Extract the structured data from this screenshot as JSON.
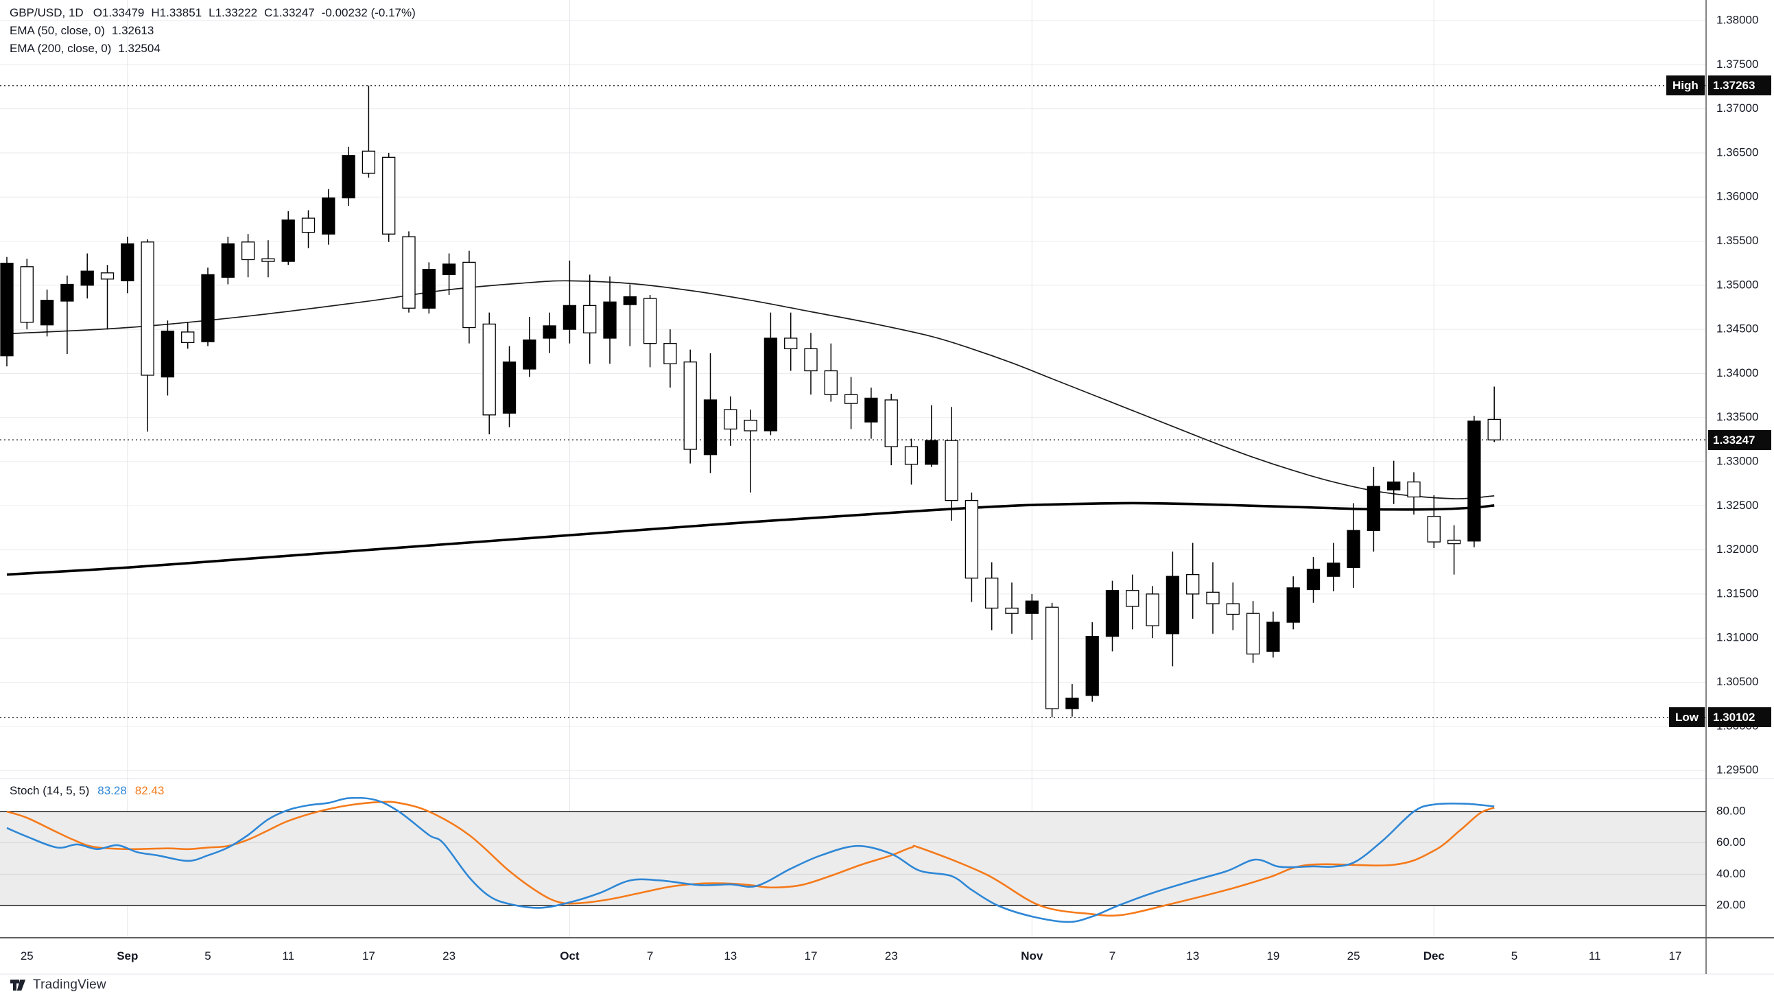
{
  "legend": {
    "symbol_interval": "GBP/USD, 1D",
    "open": "O1.33479",
    "high": "H1.33851",
    "low": "L1.33222",
    "close": "C1.33247",
    "change": "-0.00232 (-0.17%)",
    "ema50_title": "EMA (50, close, 0)",
    "ema50_value": "1.32613",
    "ema200_title": "EMA (200, close, 0)",
    "ema200_value": "1.32504"
  },
  "stoch_legend": {
    "title": "Stoch (14, 5, 5)",
    "k_value": "83.28",
    "d_value": "82.43"
  },
  "badges": {
    "high_label": "High",
    "high_value": "1.37263",
    "low_label": "Low",
    "low_value": "1.30102",
    "close_value": "1.33247"
  },
  "price_axis": {
    "labels": [
      "1.38000",
      "1.37500",
      "1.37000",
      "1.36500",
      "1.36000",
      "1.35500",
      "1.35000",
      "1.34500",
      "1.34000",
      "1.33500",
      "1.33000",
      "1.32500",
      "1.32000",
      "1.31500",
      "1.31000",
      "1.30500",
      "1.30000",
      "1.29500"
    ]
  },
  "stoch_axis": {
    "labels": [
      "80.00",
      "60.00",
      "40.00",
      "20.00"
    ],
    "values": [
      80,
      60,
      40,
      20
    ]
  },
  "time_axis": {
    "ticks": [
      {
        "label": "25",
        "idx": 1,
        "bold": false
      },
      {
        "label": "Sep",
        "idx": 6,
        "bold": true
      },
      {
        "label": "5",
        "idx": 10,
        "bold": false
      },
      {
        "label": "11",
        "idx": 14,
        "bold": false
      },
      {
        "label": "17",
        "idx": 18,
        "bold": false
      },
      {
        "label": "23",
        "idx": 22,
        "bold": false
      },
      {
        "label": "Oct",
        "idx": 28,
        "bold": true
      },
      {
        "label": "7",
        "idx": 32,
        "bold": false
      },
      {
        "label": "13",
        "idx": 36,
        "bold": false
      },
      {
        "label": "17",
        "idx": 40,
        "bold": false
      },
      {
        "label": "23",
        "idx": 44,
        "bold": false
      },
      {
        "label": "Nov",
        "idx": 51,
        "bold": true
      },
      {
        "label": "7",
        "idx": 55,
        "bold": false
      },
      {
        "label": "13",
        "idx": 59,
        "bold": false
      },
      {
        "label": "19",
        "idx": 63,
        "bold": false
      },
      {
        "label": "25",
        "idx": 67,
        "bold": false
      },
      {
        "label": "Dec",
        "idx": 71,
        "bold": true
      },
      {
        "label": "5",
        "idx": 75,
        "bold": false
      },
      {
        "label": "11",
        "idx": 79,
        "bold": false
      },
      {
        "label": "17",
        "idx": 83,
        "bold": false
      }
    ]
  },
  "footer": {
    "brand": "TradingView"
  },
  "colors": {
    "up_candle": "#000000",
    "down_candle_fill": "#ffffff",
    "candle_stroke": "#000000",
    "grid": "#e9eaec",
    "month_grid": "#e4e6ea",
    "axis_text": "#131722",
    "axis_border": "#4f4f4f",
    "badge_bg": "#0b0b0b",
    "ema50": "#1c1c1c",
    "ema200": "#000000",
    "stoch_k": "#2e87d6",
    "stoch_d": "#f57a1a",
    "stoch_band": "#ececec",
    "stoch_inner_grid": "#d6d6d6",
    "stoch_band_edge": "#1f1f1f",
    "divider_light": "#e0e3eb",
    "divider_dark": "#2a2a2a",
    "dotted_level": "#1f1f1f"
  },
  "chart_data": {
    "type": "candlestick",
    "title": "GBP/USD, 1D with EMA(50), EMA(200) and Stochastic (14,5,5)",
    "symbol": "GBP/USD",
    "interval": "1D",
    "last_bar": {
      "open": 1.33479,
      "high": 1.33851,
      "low": 1.33222,
      "close": 1.33247,
      "change": -0.00232,
      "change_pct": -0.17
    },
    "key_levels": {
      "high": 1.37263,
      "low": 1.30102,
      "close": 1.33247
    },
    "price_axis": {
      "grid_min": 1.295,
      "grid_max": 1.38,
      "grid_step": 0.005
    },
    "legend_position": "top-left",
    "grid": true,
    "up_style": "filled-black",
    "down_style": "hollow-white",
    "month_grid_indices": [
      6,
      28,
      51,
      71
    ],
    "candles": [
      [
        "Aug 22",
        1.342,
        1.3532,
        1.3408,
        1.3525
      ],
      [
        "Aug 25",
        1.3521,
        1.353,
        1.345,
        1.3458
      ],
      [
        "Aug 26",
        1.3455,
        1.3495,
        1.3442,
        1.3483
      ],
      [
        "Aug 27",
        1.3482,
        1.3511,
        1.3422,
        1.3501
      ],
      [
        "Aug 28",
        1.35,
        1.3536,
        1.3485,
        1.3516
      ],
      [
        "Aug 29",
        1.3514,
        1.3523,
        1.345,
        1.3507
      ],
      [
        "Sep 1",
        1.3505,
        1.3555,
        1.3491,
        1.3547
      ],
      [
        "Sep 2",
        1.3549,
        1.3552,
        1.3334,
        1.3398
      ],
      [
        "Sep 3",
        1.3396,
        1.346,
        1.3375,
        1.3448
      ],
      [
        "Sep 4",
        1.3447,
        1.3458,
        1.3428,
        1.3435
      ],
      [
        "Sep 5",
        1.3436,
        1.352,
        1.3431,
        1.3512
      ],
      [
        "Sep 8",
        1.3509,
        1.3555,
        1.3501,
        1.3547
      ],
      [
        "Sep 9",
        1.3549,
        1.3558,
        1.3509,
        1.3529
      ],
      [
        "Sep 10",
        1.353,
        1.3551,
        1.3509,
        1.3527
      ],
      [
        "Sep 11",
        1.3527,
        1.3584,
        1.3523,
        1.3574
      ],
      [
        "Sep 12",
        1.3576,
        1.3585,
        1.3542,
        1.356
      ],
      [
        "Sep 15",
        1.3558,
        1.3609,
        1.3546,
        1.3599
      ],
      [
        "Sep 16",
        1.3599,
        1.3657,
        1.359,
        1.3647
      ],
      [
        "Sep 17",
        1.3652,
        1.37263,
        1.3622,
        1.3627
      ],
      [
        "Sep 18",
        1.3645,
        1.365,
        1.3549,
        1.3558
      ],
      [
        "Sep 19",
        1.3555,
        1.3561,
        1.3469,
        1.3474
      ],
      [
        "Sep 22",
        1.3474,
        1.3526,
        1.3468,
        1.3518
      ],
      [
        "Sep 23",
        1.3512,
        1.3536,
        1.3489,
        1.3524
      ],
      [
        "Sep 24",
        1.3526,
        1.3539,
        1.3434,
        1.3452
      ],
      [
        "Sep 25",
        1.3456,
        1.3469,
        1.3331,
        1.3353
      ],
      [
        "Sep 26",
        1.3355,
        1.3431,
        1.3339,
        1.3413
      ],
      [
        "Sep 29",
        1.3405,
        1.3464,
        1.3396,
        1.3438
      ],
      [
        "Sep 30",
        1.344,
        1.3469,
        1.3423,
        1.3454
      ],
      [
        "Oct 1",
        1.345,
        1.3528,
        1.3434,
        1.3477
      ],
      [
        "Oct 2",
        1.3477,
        1.3512,
        1.3411,
        1.3446
      ],
      [
        "Oct 3",
        1.344,
        1.351,
        1.3411,
        1.3481
      ],
      [
        "Oct 6",
        1.3478,
        1.3501,
        1.3431,
        1.3487
      ],
      [
        "Oct 7",
        1.3485,
        1.3489,
        1.3407,
        1.3434
      ],
      [
        "Oct 8",
        1.3434,
        1.345,
        1.3384,
        1.3411
      ],
      [
        "Oct 9",
        1.3413,
        1.3427,
        1.3298,
        1.3314
      ],
      [
        "Oct 10",
        1.3308,
        1.3423,
        1.3287,
        1.337
      ],
      [
        "Oct 13",
        1.3359,
        1.3374,
        1.3318,
        1.3337
      ],
      [
        "Oct 14",
        1.3347,
        1.3359,
        1.3265,
        1.3335
      ],
      [
        "Oct 15",
        1.3335,
        1.3469,
        1.333,
        1.344
      ],
      [
        "Oct 16",
        1.344,
        1.3469,
        1.3403,
        1.3428
      ],
      [
        "Oct 17",
        1.3428,
        1.3446,
        1.3376,
        1.3403
      ],
      [
        "Oct 20",
        1.3403,
        1.3434,
        1.3368,
        1.3376
      ],
      [
        "Oct 21",
        1.3376,
        1.3396,
        1.3337,
        1.3366
      ],
      [
        "Oct 22",
        1.3345,
        1.3384,
        1.3326,
        1.3372
      ],
      [
        "Oct 23",
        1.337,
        1.3377,
        1.3296,
        1.3317
      ],
      [
        "Oct 24",
        1.3317,
        1.3326,
        1.3274,
        1.3297
      ],
      [
        "Oct 27",
        1.3297,
        1.3364,
        1.3294,
        1.3324
      ],
      [
        "Oct 28",
        1.3324,
        1.3362,
        1.3233,
        1.3256
      ],
      [
        "Oct 29",
        1.3256,
        1.3265,
        1.3141,
        1.3168
      ],
      [
        "Oct 30",
        1.3168,
        1.3186,
        1.3109,
        1.3134
      ],
      [
        "Oct 31",
        1.3134,
        1.3163,
        1.3105,
        1.3128
      ],
      [
        "Nov 3",
        1.3128,
        1.315,
        1.3098,
        1.3142
      ],
      [
        "Nov 4",
        1.3135,
        1.314,
        1.30102,
        1.302
      ],
      [
        "Nov 5",
        1.302,
        1.3048,
        1.3011,
        1.3032
      ],
      [
        "Nov 6",
        1.3035,
        1.3118,
        1.3028,
        1.3102
      ],
      [
        "Nov 7",
        1.3102,
        1.3165,
        1.3085,
        1.3154
      ],
      [
        "Nov 10",
        1.3154,
        1.3172,
        1.311,
        1.3136
      ],
      [
        "Nov 11",
        1.315,
        1.3159,
        1.31,
        1.3114
      ],
      [
        "Nov 12",
        1.3105,
        1.3198,
        1.3068,
        1.317
      ],
      [
        "Nov 13",
        1.3172,
        1.3208,
        1.3122,
        1.315
      ],
      [
        "Nov 14",
        1.3152,
        1.3186,
        1.3105,
        1.3139
      ],
      [
        "Nov 17",
        1.3139,
        1.3163,
        1.3109,
        1.3127
      ],
      [
        "Nov 18",
        1.3128,
        1.3142,
        1.3072,
        1.3082
      ],
      [
        "Nov 19",
        1.3085,
        1.313,
        1.3078,
        1.3118
      ],
      [
        "Nov 20",
        1.3118,
        1.317,
        1.311,
        1.3157
      ],
      [
        "Nov 21",
        1.3155,
        1.3192,
        1.314,
        1.3178
      ],
      [
        "Nov 24",
        1.317,
        1.3208,
        1.3153,
        1.3185
      ],
      [
        "Nov 25",
        1.318,
        1.3253,
        1.3157,
        1.3222
      ],
      [
        "Nov 26",
        1.3222,
        1.3294,
        1.3198,
        1.3272
      ],
      [
        "Nov 27",
        1.3268,
        1.3301,
        1.3252,
        1.3277
      ],
      [
        "Nov 28",
        1.3277,
        1.3288,
        1.324,
        1.326
      ],
      [
        "Dec 1",
        1.3238,
        1.3262,
        1.3202,
        1.3209
      ],
      [
        "Dec 2",
        1.3211,
        1.3228,
        1.3172,
        1.3207
      ],
      [
        "Dec 3",
        1.321,
        1.3352,
        1.3203,
        1.3346
      ],
      [
        "Dec 4",
        1.33479,
        1.33851,
        1.33222,
        1.33247
      ]
    ],
    "overlays": [
      {
        "name": "EMA 50",
        "current": 1.32613,
        "anchors": [
          [
            0,
            1.3445
          ],
          [
            6,
            1.3452
          ],
          [
            12,
            1.3465
          ],
          [
            18,
            1.3482
          ],
          [
            22,
            1.3495
          ],
          [
            26,
            1.3503
          ],
          [
            28,
            1.3505
          ],
          [
            31,
            1.3502
          ],
          [
            34,
            1.3494
          ],
          [
            37,
            1.3483
          ],
          [
            40,
            1.347
          ],
          [
            43,
            1.3457
          ],
          [
            46,
            1.3442
          ],
          [
            48,
            1.3428
          ],
          [
            50,
            1.3412
          ],
          [
            52,
            1.3394
          ],
          [
            54,
            1.3376
          ],
          [
            56,
            1.3358
          ],
          [
            58,
            1.334
          ],
          [
            60,
            1.3322
          ],
          [
            62,
            1.3305
          ],
          [
            64,
            1.329
          ],
          [
            66,
            1.3277
          ],
          [
            68,
            1.3267
          ],
          [
            70,
            1.3261
          ],
          [
            72,
            1.3258
          ],
          [
            73,
            1.3259
          ],
          [
            74,
            1.32613
          ]
        ]
      },
      {
        "name": "EMA 200",
        "current": 1.32504,
        "anchors": [
          [
            0,
            1.3172
          ],
          [
            6,
            1.318
          ],
          [
            12,
            1.319
          ],
          [
            18,
            1.32
          ],
          [
            24,
            1.321
          ],
          [
            30,
            1.322
          ],
          [
            36,
            1.323
          ],
          [
            42,
            1.3239
          ],
          [
            46,
            1.3245
          ],
          [
            50,
            1.325
          ],
          [
            53,
            1.3252
          ],
          [
            56,
            1.3253
          ],
          [
            59,
            1.3252
          ],
          [
            62,
            1.325
          ],
          [
            65,
            1.3248
          ],
          [
            68,
            1.3246
          ],
          [
            71,
            1.3246
          ],
          [
            73,
            1.3248
          ],
          [
            74,
            1.32504
          ]
        ]
      }
    ],
    "stochastic": {
      "k": 83.28,
      "d": 82.43,
      "band": [
        20,
        80
      ],
      "axis_range": [
        0,
        100
      ],
      "k_anchors": [
        [
          0,
          69.5
        ],
        [
          1,
          64
        ],
        [
          2.5,
          57
        ],
        [
          3.5,
          59
        ],
        [
          4.5,
          56
        ],
        [
          5.5,
          58.5
        ],
        [
          6.5,
          54
        ],
        [
          7.5,
          52
        ],
        [
          9,
          48.5
        ],
        [
          10,
          52
        ],
        [
          11,
          57
        ],
        [
          12,
          65
        ],
        [
          13,
          75
        ],
        [
          14,
          81
        ],
        [
          15,
          84
        ],
        [
          16,
          85.5
        ],
        [
          17,
          88.5
        ],
        [
          18.3,
          87.5
        ],
        [
          19.5,
          80
        ],
        [
          21,
          65
        ],
        [
          21.7,
          60
        ],
        [
          23,
          38
        ],
        [
          24,
          26
        ],
        [
          25,
          21
        ],
        [
          26.5,
          18.5
        ],
        [
          28,
          22
        ],
        [
          29.5,
          28
        ],
        [
          31,
          36
        ],
        [
          32.5,
          36
        ],
        [
          34.5,
          33
        ],
        [
          36,
          33.5
        ],
        [
          37.3,
          32.5
        ],
        [
          39,
          43.5
        ],
        [
          40.5,
          52
        ],
        [
          42.3,
          58
        ],
        [
          44,
          53
        ],
        [
          45.4,
          42.3
        ],
        [
          47,
          38.8
        ],
        [
          48,
          30
        ],
        [
          49.3,
          20
        ],
        [
          51,
          13
        ],
        [
          52.8,
          9.5
        ],
        [
          54,
          13
        ],
        [
          55.3,
          20
        ],
        [
          57,
          28
        ],
        [
          59,
          35.8
        ],
        [
          60.7,
          42
        ],
        [
          62.1,
          49.3
        ],
        [
          63.2,
          45
        ],
        [
          64,
          44.5
        ],
        [
          65,
          45
        ],
        [
          66,
          44.8
        ],
        [
          67.1,
          48
        ],
        [
          68.5,
          62
        ],
        [
          70,
          80
        ],
        [
          71,
          84.5
        ],
        [
          72.5,
          85
        ],
        [
          74,
          83.28
        ]
      ],
      "d_anchors": [
        [
          0,
          80
        ],
        [
          1,
          76
        ],
        [
          2.3,
          68
        ],
        [
          3.3,
          62
        ],
        [
          4.3,
          57.5
        ],
        [
          6,
          56
        ],
        [
          8,
          56.5
        ],
        [
          9,
          56
        ],
        [
          10,
          57
        ],
        [
          11,
          58
        ],
        [
          12,
          62
        ],
        [
          13,
          68
        ],
        [
          14,
          74
        ],
        [
          15.5,
          80
        ],
        [
          17,
          84
        ],
        [
          18.5,
          86
        ],
        [
          19.5,
          85.5
        ],
        [
          21,
          80
        ],
        [
          23,
          65
        ],
        [
          25,
          42
        ],
        [
          26.5,
          28
        ],
        [
          27.5,
          22
        ],
        [
          28.5,
          21.5
        ],
        [
          30,
          24
        ],
        [
          31.5,
          28
        ],
        [
          33,
          32
        ],
        [
          34.5,
          34
        ],
        [
          36,
          34
        ],
        [
          37,
          33
        ],
        [
          38,
          31.5
        ],
        [
          39.5,
          33
        ],
        [
          41,
          39
        ],
        [
          42.5,
          46
        ],
        [
          44,
          52
        ],
        [
          45,
          57
        ],
        [
          45.5,
          56.5
        ],
        [
          48.7,
          40
        ],
        [
          51.4,
          20
        ],
        [
          54,
          14.5
        ],
        [
          55.5,
          14
        ],
        [
          57.6,
          20
        ],
        [
          60.7,
          30
        ],
        [
          62.8,
          38
        ],
        [
          64.8,
          46
        ],
        [
          69,
          46
        ],
        [
          71,
          55
        ],
        [
          72.3,
          68
        ],
        [
          73.3,
          79
        ],
        [
          74,
          82.43
        ]
      ]
    }
  }
}
